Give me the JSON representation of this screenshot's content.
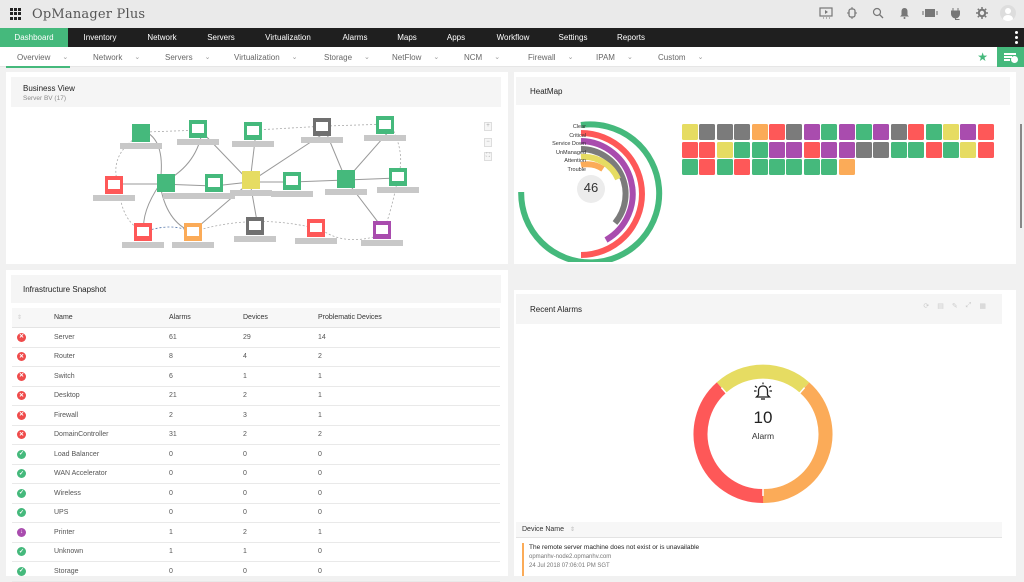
{
  "app": {
    "title": "OpManager Plus",
    "top_icons": [
      "presentation-icon",
      "plug-in-icon",
      "search-icon",
      "bell-icon",
      "battery-icon",
      "power-plug-icon",
      "gear-icon",
      "user-avatar-icon"
    ]
  },
  "main_nav": {
    "items": [
      {
        "label": "Dashboard",
        "active": true
      },
      {
        "label": "Inventory"
      },
      {
        "label": "Network"
      },
      {
        "label": "Servers"
      },
      {
        "label": "Virtualization"
      },
      {
        "label": "Alarms"
      },
      {
        "label": "Maps"
      },
      {
        "label": "Apps"
      },
      {
        "label": "Workflow"
      },
      {
        "label": "Settings"
      },
      {
        "label": "Reports"
      }
    ]
  },
  "sub_nav": {
    "items": [
      {
        "label": "Overview",
        "active": true
      },
      {
        "label": "Network"
      },
      {
        "label": "Servers"
      },
      {
        "label": "Virtualization"
      },
      {
        "label": "Storage"
      },
      {
        "label": "NetFlow"
      },
      {
        "label": "NCM"
      },
      {
        "label": "Firewall"
      },
      {
        "label": "IPAM"
      },
      {
        "label": "Custom"
      }
    ]
  },
  "business_view": {
    "title": "Business View",
    "subtitle": "Server BV (17)",
    "zoom_in": "+",
    "zoom_out": "−",
    "fit": "⛶"
  },
  "heatmap": {
    "title": "HeatMap",
    "center_value": "46",
    "legend": [
      "Clear",
      "Critical",
      "Service Down",
      "UnManaged",
      "Attention",
      "Trouble"
    ],
    "colors": {
      "clear": "#45b97c",
      "critical": "#fe5858",
      "service_down": "#a94cae",
      "unmanaged": "#7b7b7b",
      "attention": "#e6dc62",
      "trouble": "#fbab58"
    },
    "cells": [
      [
        "attention",
        "unmanaged",
        "unmanaged",
        "unmanaged",
        "trouble",
        "critical",
        "unmanaged",
        "service_down",
        "clear",
        "service_down",
        "clear",
        "service_down",
        "unmanaged",
        "critical",
        "clear",
        "attention",
        "service_down",
        "critical"
      ],
      [
        "critical",
        "critical",
        "attention",
        "clear",
        "clear",
        "service_down",
        "service_down",
        "critical",
        "service_down",
        "service_down",
        "unmanaged",
        "unmanaged",
        "clear",
        "clear",
        "critical",
        "clear",
        "attention",
        "critical"
      ],
      [
        "clear",
        "critical",
        "clear",
        "critical",
        "clear",
        "clear",
        "clear",
        "clear",
        "clear",
        "trouble"
      ]
    ]
  },
  "infra_snapshot": {
    "title": "Infrastructure Snapshot",
    "columns": [
      "Name",
      "Alarms",
      "Devices",
      "Problematic Devices"
    ],
    "rows": [
      {
        "status": "critical",
        "name": "Server",
        "alarms": "61",
        "devices": "29",
        "problematic": "14"
      },
      {
        "status": "critical",
        "name": "Router",
        "alarms": "8",
        "devices": "4",
        "problematic": "2"
      },
      {
        "status": "critical",
        "name": "Switch",
        "alarms": "6",
        "devices": "1",
        "problematic": "1"
      },
      {
        "status": "critical",
        "name": "Desktop",
        "alarms": "21",
        "devices": "2",
        "problematic": "1"
      },
      {
        "status": "critical",
        "name": "Firewall",
        "alarms": "2",
        "devices": "3",
        "problematic": "1"
      },
      {
        "status": "critical",
        "name": "DomainController",
        "alarms": "31",
        "devices": "2",
        "problematic": "2"
      },
      {
        "status": "clear",
        "name": "Load Balancer",
        "alarms": "0",
        "devices": "0",
        "problematic": "0"
      },
      {
        "status": "clear",
        "name": "WAN Accelerator",
        "alarms": "0",
        "devices": "0",
        "problematic": "0"
      },
      {
        "status": "clear",
        "name": "Wireless",
        "alarms": "0",
        "devices": "0",
        "problematic": "0"
      },
      {
        "status": "clear",
        "name": "UPS",
        "alarms": "0",
        "devices": "0",
        "problematic": "0"
      },
      {
        "status": "service_down",
        "name": "Printer",
        "alarms": "1",
        "devices": "2",
        "problematic": "1"
      },
      {
        "status": "clear",
        "name": "Unknown",
        "alarms": "1",
        "devices": "1",
        "problematic": "0"
      },
      {
        "status": "clear",
        "name": "Storage",
        "alarms": "0",
        "devices": "0",
        "problematic": "0"
      }
    ]
  },
  "recent_alarms": {
    "title": "Recent Alarms",
    "count": "10",
    "count_label": "Alarm",
    "segments": [
      {
        "severity": "Attention",
        "color": "#e6dc62",
        "value": 2
      },
      {
        "severity": "Trouble",
        "color": "#fbab58",
        "value": 4
      },
      {
        "severity": "Critical",
        "color": "#fe5858",
        "value": 4
      }
    ],
    "list_header": "Device Name",
    "items": [
      {
        "message": "The remote server machine does not exist or is unavailable",
        "device": "opmanhv-node2.opmanhv.com",
        "time": "24 Jul 2018 07:06:01 PM SGT"
      }
    ]
  }
}
